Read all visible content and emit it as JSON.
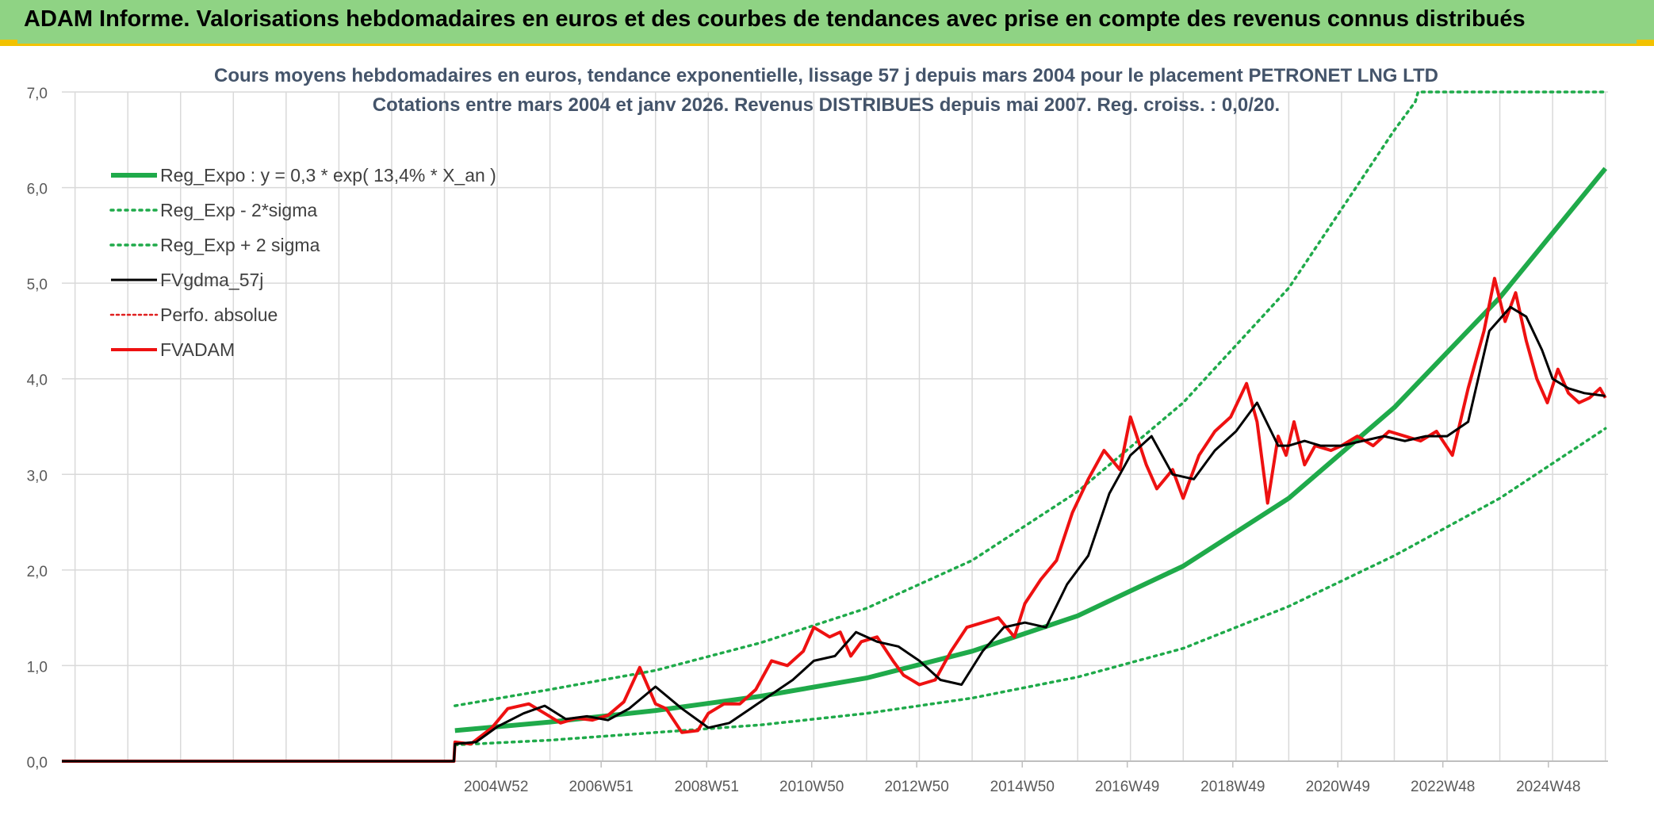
{
  "header": {
    "title": "ADAM Informe. Valorisations hebdomadaires en euros et des courbes de tendances avec prise en compte des revenus connus distribués"
  },
  "colors": {
    "header_bg": "#8fd384",
    "header_border": "#f2c200",
    "reg_expo": "#1faa4a",
    "bands": "#1faa4a",
    "fvgdma": "#000000",
    "perfo": "#e02020",
    "fvadam": "#ee1111",
    "grid": "#d9d9d9"
  },
  "chart_data": {
    "type": "line",
    "title": "Cours moyens hebdomadaires en euros, tendance exponentielle, lissage 57 j depuis mars 2004 pour le placement PETRONET LNG LTD",
    "subtitle": "Cotations entre mars 2004 et janv 2026. Revenus DISTRIBUES depuis mai 2007. Reg. croiss. : 0,0/20.",
    "xlabel": "",
    "ylabel": "",
    "ylim": [
      0,
      7
    ],
    "yticks": [
      "0,0",
      "1,0",
      "2,0",
      "3,0",
      "4,0",
      "5,0",
      "6,0",
      "7,0"
    ],
    "xticks": [
      {
        "label": "2004W52",
        "year": 2004.98
      },
      {
        "label": "2006W51",
        "year": 2006.97
      },
      {
        "label": "2008W51",
        "year": 2008.97
      },
      {
        "label": "2010W50",
        "year": 2010.96
      },
      {
        "label": "2012W50",
        "year": 2012.95
      },
      {
        "label": "2014W50",
        "year": 2014.95
      },
      {
        "label": "2016W49",
        "year": 2016.94
      },
      {
        "label": "2018W49",
        "year": 2018.94
      },
      {
        "label": "2020W49",
        "year": 2020.93
      },
      {
        "label": "2022W48",
        "year": 2022.92
      },
      {
        "label": "2024W48",
        "year": 2024.92
      }
    ],
    "xlim": [
      1996.75,
      2026.05
    ],
    "grid": true,
    "legend_position": "top-left",
    "series": [
      {
        "name": "Reg_Expo : y = 0,3 * exp( 13,4% *  X_an )",
        "key": "reg",
        "style": "solid-thick",
        "x": [
          2004.2,
          2006,
          2008,
          2010,
          2012,
          2014,
          2016,
          2018,
          2020,
          2022,
          2024,
          2026
        ],
        "y": [
          0.32,
          0.41,
          0.53,
          0.68,
          0.87,
          1.15,
          1.52,
          2.04,
          2.75,
          3.7,
          4.85,
          6.2
        ]
      },
      {
        "name": "Reg_Exp - 2*sigma",
        "key": "low",
        "style": "dotted",
        "x": [
          2004.2,
          2006,
          2008,
          2010,
          2012,
          2014,
          2016,
          2018,
          2020,
          2022,
          2024,
          2026
        ],
        "y": [
          0.17,
          0.22,
          0.3,
          0.38,
          0.5,
          0.66,
          0.88,
          1.18,
          1.62,
          2.15,
          2.75,
          3.48
        ]
      },
      {
        "name": "Reg_Exp + 2 sigma",
        "key": "high",
        "style": "dotted",
        "x": [
          2004.2,
          2006,
          2008,
          2010,
          2012,
          2014,
          2016,
          2018,
          2020,
          2022,
          2022.4,
          2022.45,
          2026
        ],
        "y": [
          0.58,
          0.75,
          0.95,
          1.24,
          1.6,
          2.1,
          2.82,
          3.75,
          4.95,
          6.6,
          6.9,
          7.0,
          7.0
        ]
      },
      {
        "name": "FVgdma_57j",
        "key": "gdma",
        "style": "solid",
        "x": [
          1996.75,
          2004.18,
          2004.2,
          2004.6,
          2005.0,
          2005.5,
          2005.9,
          2006.3,
          2006.7,
          2007.1,
          2007.5,
          2008.0,
          2008.5,
          2009.0,
          2009.4,
          2009.8,
          2010.2,
          2010.6,
          2011.0,
          2011.4,
          2011.8,
          2012.2,
          2012.6,
          2013.0,
          2013.4,
          2013.8,
          2014.2,
          2014.6,
          2015.0,
          2015.4,
          2015.8,
          2016.2,
          2016.6,
          2017.0,
          2017.4,
          2017.8,
          2018.2,
          2018.6,
          2019.0,
          2019.4,
          2019.8,
          2020.0,
          2020.3,
          2020.6,
          2021.0,
          2021.4,
          2021.8,
          2022.2,
          2022.6,
          2023.0,
          2023.4,
          2023.8,
          2024.2,
          2024.5,
          2024.8,
          2025.0,
          2025.3,
          2025.6,
          2026.0
        ],
        "y": [
          0,
          0,
          0.18,
          0.2,
          0.36,
          0.5,
          0.58,
          0.44,
          0.47,
          0.43,
          0.55,
          0.78,
          0.55,
          0.35,
          0.4,
          0.55,
          0.7,
          0.85,
          1.05,
          1.1,
          1.35,
          1.25,
          1.2,
          1.05,
          0.85,
          0.8,
          1.15,
          1.4,
          1.45,
          1.4,
          1.85,
          2.15,
          2.8,
          3.2,
          3.4,
          3.0,
          2.95,
          3.25,
          3.45,
          3.75,
          3.3,
          3.3,
          3.35,
          3.3,
          3.3,
          3.35,
          3.4,
          3.35,
          3.4,
          3.4,
          3.55,
          4.5,
          4.75,
          4.65,
          4.3,
          4.0,
          3.9,
          3.85,
          3.82
        ]
      },
      {
        "name": "Perfo. absolue",
        "key": "perfo",
        "style": "dotted-red",
        "x": [],
        "y": []
      },
      {
        "name": "FVADAM",
        "key": "fvadam",
        "style": "solid-thick",
        "x": [
          1996.75,
          2004.18,
          2004.2,
          2004.5,
          2004.9,
          2005.2,
          2005.6,
          2005.9,
          2006.2,
          2006.5,
          2006.8,
          2007.1,
          2007.4,
          2007.7,
          2008.0,
          2008.2,
          2008.5,
          2008.8,
          2009.0,
          2009.3,
          2009.6,
          2009.9,
          2010.2,
          2010.5,
          2010.8,
          2011.0,
          2011.3,
          2011.5,
          2011.7,
          2011.9,
          2012.2,
          2012.5,
          2012.7,
          2013.0,
          2013.3,
          2013.6,
          2013.9,
          2014.2,
          2014.5,
          2014.8,
          2015.0,
          2015.3,
          2015.6,
          2015.9,
          2016.2,
          2016.5,
          2016.8,
          2017.0,
          2017.3,
          2017.5,
          2017.8,
          2018.0,
          2018.3,
          2018.6,
          2018.9,
          2019.2,
          2019.4,
          2019.6,
          2019.8,
          2019.95,
          2020.1,
          2020.3,
          2020.5,
          2020.8,
          2021.0,
          2021.3,
          2021.6,
          2021.9,
          2022.2,
          2022.5,
          2022.8,
          2023.1,
          2023.4,
          2023.7,
          2023.9,
          2024.1,
          2024.3,
          2024.5,
          2024.7,
          2024.9,
          2025.1,
          2025.3,
          2025.5,
          2025.7,
          2025.9,
          2026.0
        ],
        "y": [
          0,
          0,
          0.2,
          0.18,
          0.35,
          0.55,
          0.6,
          0.5,
          0.4,
          0.45,
          0.43,
          0.48,
          0.62,
          0.98,
          0.6,
          0.55,
          0.3,
          0.32,
          0.5,
          0.6,
          0.6,
          0.75,
          1.05,
          1.0,
          1.15,
          1.4,
          1.3,
          1.35,
          1.1,
          1.25,
          1.3,
          1.05,
          0.9,
          0.8,
          0.85,
          1.15,
          1.4,
          1.45,
          1.5,
          1.3,
          1.65,
          1.9,
          2.1,
          2.6,
          2.95,
          3.25,
          3.05,
          3.6,
          3.1,
          2.85,
          3.05,
          2.75,
          3.2,
          3.45,
          3.6,
          3.95,
          3.55,
          2.7,
          3.4,
          3.2,
          3.55,
          3.1,
          3.3,
          3.25,
          3.3,
          3.4,
          3.3,
          3.45,
          3.4,
          3.35,
          3.45,
          3.2,
          3.9,
          4.5,
          5.05,
          4.6,
          4.9,
          4.4,
          4.0,
          3.75,
          4.1,
          3.85,
          3.75,
          3.8,
          3.9,
          3.8
        ]
      }
    ]
  }
}
